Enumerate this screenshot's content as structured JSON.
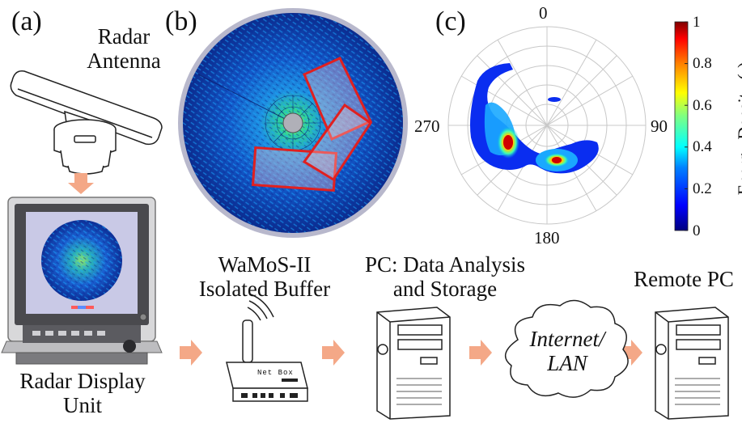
{
  "panels": {
    "a": "(a)",
    "b": "(b)",
    "c": "(c)"
  },
  "labels": {
    "radar_antenna": [
      "Radar",
      "Antenna"
    ],
    "radar_display": [
      "Radar Display",
      "Unit"
    ],
    "wamos": [
      "WaMoS-II",
      "Isolated Buffer"
    ],
    "pc": [
      "PC: Data Analysis",
      "and Storage"
    ],
    "remote_pc": "Remote PC",
    "cloud": [
      "Internet/",
      "LAN"
    ],
    "router_text": "Net Box"
  },
  "polar": {
    "angles": [
      "0",
      "90",
      "180",
      "270"
    ]
  },
  "colorbar": {
    "label": "Energy Density (-)",
    "ticks": [
      "0",
      "0.2",
      "0.4",
      "0.6",
      "0.8",
      "1"
    ],
    "colors": [
      "#00007f",
      "#0000ff",
      "#0080ff",
      "#00ffff",
      "#80ff80",
      "#ffff00",
      "#ff8000",
      "#ff0000",
      "#7f0000"
    ]
  },
  "colors": {
    "arrow": "#f4a887",
    "red_box": "#e02020"
  }
}
